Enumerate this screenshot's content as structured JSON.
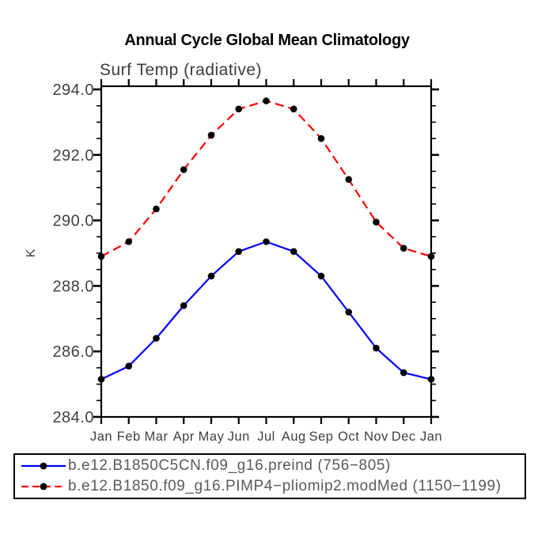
{
  "chart_data": {
    "type": "line",
    "title": "Annual Cycle Global Mean Climatology",
    "subtitle": "Surf Temp (radiative)",
    "ylabel": "K",
    "ylim": [
      284.0,
      294.0
    ],
    "grid": false,
    "legend_position": "below-bottom-left",
    "x": [
      "Jan",
      "Feb",
      "Mar",
      "Apr",
      "May",
      "Jun",
      "Jul",
      "Aug",
      "Sep",
      "Oct",
      "Nov",
      "Dec",
      "Jan"
    ],
    "yticks": {
      "major_values": [
        284.0,
        286.0,
        288.0,
        290.0,
        292.0,
        294.0
      ],
      "major_labels": [
        "284.0",
        "286.0",
        "288.0",
        "290.0",
        "292.0",
        "294.0"
      ],
      "minor_step": 0.5
    },
    "series": [
      {
        "name": "b.e12.B1850C5CN.f09_g16.preind (756−805)",
        "color": "#0000ff",
        "style": "solid",
        "marker": "filled-circle",
        "marker_color": "#000000",
        "values": [
          285.15,
          285.55,
          286.4,
          287.4,
          288.3,
          289.05,
          289.35,
          289.05,
          288.3,
          287.2,
          286.1,
          285.35,
          285.15
        ]
      },
      {
        "name": "b.e12.B1850.f09_g16.PIMP4−pliomip2.modMed (1150−1199)",
        "color": "#ff0000",
        "style": "dashed",
        "marker": "filled-circle",
        "marker_color": "#000000",
        "values": [
          288.9,
          289.35,
          290.35,
          291.55,
          292.6,
          293.4,
          293.65,
          293.4,
          292.5,
          291.25,
          289.95,
          289.15,
          288.9
        ]
      }
    ]
  }
}
